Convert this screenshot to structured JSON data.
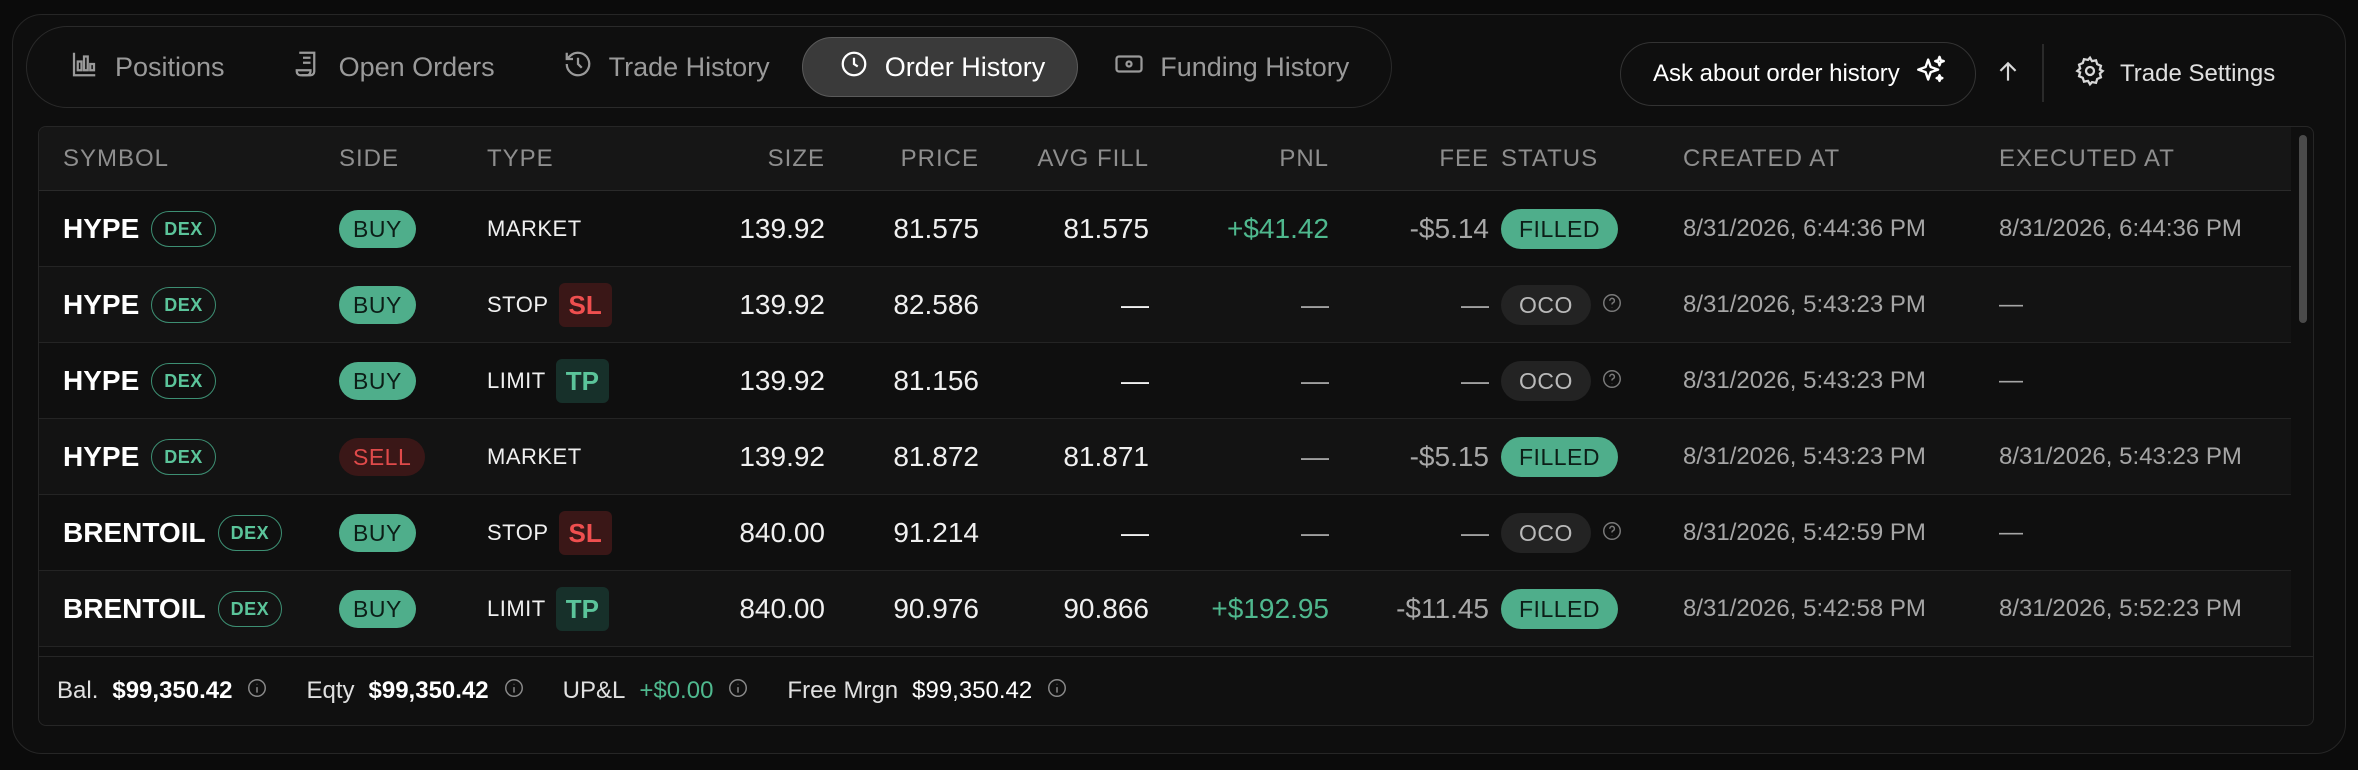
{
  "tabs": [
    {
      "label": "Positions",
      "icon": "bar-chart-icon",
      "active": false
    },
    {
      "label": "Open Orders",
      "icon": "receipt-icon",
      "active": false
    },
    {
      "label": "Trade History",
      "icon": "history-icon",
      "active": false
    },
    {
      "label": "Order History",
      "icon": "clock-icon",
      "active": true
    },
    {
      "label": "Funding History",
      "icon": "banknote-icon",
      "active": false
    }
  ],
  "ask_button": {
    "label": "Ask about order history",
    "icon": "sparkles-icon"
  },
  "settings_button": {
    "label": "Trade Settings",
    "icon": "gear-icon"
  },
  "columns": [
    "SYMBOL",
    "SIDE",
    "TYPE",
    "SIZE",
    "PRICE",
    "AVG FILL",
    "PNL",
    "FEE",
    "STATUS",
    "CREATED AT",
    "EXECUTED AT"
  ],
  "rows": [
    {
      "symbol": "HYPE",
      "market": "DEX",
      "side": "BUY",
      "type": "MARKET",
      "tag": "",
      "size": "139.92",
      "price": "81.575",
      "avg_fill": "81.575",
      "pnl": "+$41.42",
      "fee": "-$5.14",
      "status": "FILLED",
      "created": "8/31/2026, 6:44:36 PM",
      "executed": "8/31/2026, 6:44:36 PM"
    },
    {
      "symbol": "HYPE",
      "market": "DEX",
      "side": "BUY",
      "type": "STOP",
      "tag": "SL",
      "size": "139.92",
      "price": "82.586",
      "avg_fill": "—",
      "pnl": "—",
      "fee": "—",
      "status": "OCO",
      "created": "8/31/2026, 5:43:23 PM",
      "executed": "—"
    },
    {
      "symbol": "HYPE",
      "market": "DEX",
      "side": "BUY",
      "type": "LIMIT",
      "tag": "TP",
      "size": "139.92",
      "price": "81.156",
      "avg_fill": "—",
      "pnl": "—",
      "fee": "—",
      "status": "OCO",
      "created": "8/31/2026, 5:43:23 PM",
      "executed": "—"
    },
    {
      "symbol": "HYPE",
      "market": "DEX",
      "side": "SELL",
      "type": "MARKET",
      "tag": "",
      "size": "139.92",
      "price": "81.872",
      "avg_fill": "81.871",
      "pnl": "—",
      "fee": "-$5.15",
      "status": "FILLED",
      "created": "8/31/2026, 5:43:23 PM",
      "executed": "8/31/2026, 5:43:23 PM"
    },
    {
      "symbol": "BRENTOIL",
      "market": "DEX",
      "side": "BUY",
      "type": "STOP",
      "tag": "SL",
      "size": "840.00",
      "price": "91.214",
      "avg_fill": "—",
      "pnl": "—",
      "fee": "—",
      "status": "OCO",
      "created": "8/31/2026, 5:42:59 PM",
      "executed": "—"
    },
    {
      "symbol": "BRENTOIL",
      "market": "DEX",
      "side": "BUY",
      "type": "LIMIT",
      "tag": "TP",
      "size": "840.00",
      "price": "90.976",
      "avg_fill": "90.866",
      "pnl": "+$192.95",
      "fee": "-$11.45",
      "status": "FILLED",
      "created": "8/31/2026, 5:42:58 PM",
      "executed": "8/31/2026, 5:52:23 PM"
    }
  ],
  "footer": {
    "balance_label": "Bal.",
    "balance_value": "$99,350.42",
    "equity_label": "Eqty",
    "equity_value": "$99,350.42",
    "upnl_label": "UP&L",
    "upnl_value": "+$0.00",
    "free_margin_label": "Free Mrgn",
    "free_margin_value": "$99,350.42"
  },
  "colors": {
    "accent_green": "#4fae8b",
    "sell_red": "#e04a4a",
    "background": "#0b0b0b"
  }
}
